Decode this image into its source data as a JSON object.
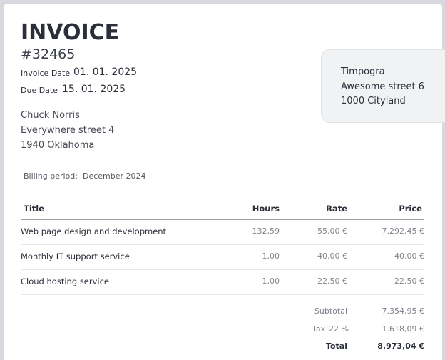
{
  "header": {
    "title": "INVOICE",
    "number": "#32465",
    "invoice_date": {
      "label": "Invoice Date",
      "value": "01. 01. 2025"
    },
    "due_date": {
      "label": "Due Date",
      "value": "15. 01. 2025"
    }
  },
  "client": {
    "lines": [
      "Chuck Norris",
      "Everywhere street 4",
      "1940 Oklahoma"
    ]
  },
  "company": {
    "lines": [
      "Timpogra",
      "Awesome street 6",
      "1000 Cityland"
    ]
  },
  "billing_period": {
    "label": "Billing period:",
    "value": "December 2024"
  },
  "table": {
    "columns": [
      "Title",
      "Hours",
      "Rate",
      "Price"
    ],
    "rows": [
      [
        "Web page design and development",
        "132,59",
        "55,00 €",
        "7.292,45 €"
      ],
      [
        "Monthly IT support service",
        "1,00",
        "40,00 €",
        "40,00 €"
      ],
      [
        "Cloud hosting service",
        "1,00",
        "22,50 €",
        "22,50 €"
      ]
    ]
  },
  "totals": {
    "subtotal": {
      "label": "Subtotal",
      "value": "7.354,95 €"
    },
    "tax": {
      "label": "Tax",
      "rate": "22 %",
      "value": "1.618,09 €"
    },
    "total": {
      "label": "Total",
      "value": "8.973,04 €"
    }
  }
}
